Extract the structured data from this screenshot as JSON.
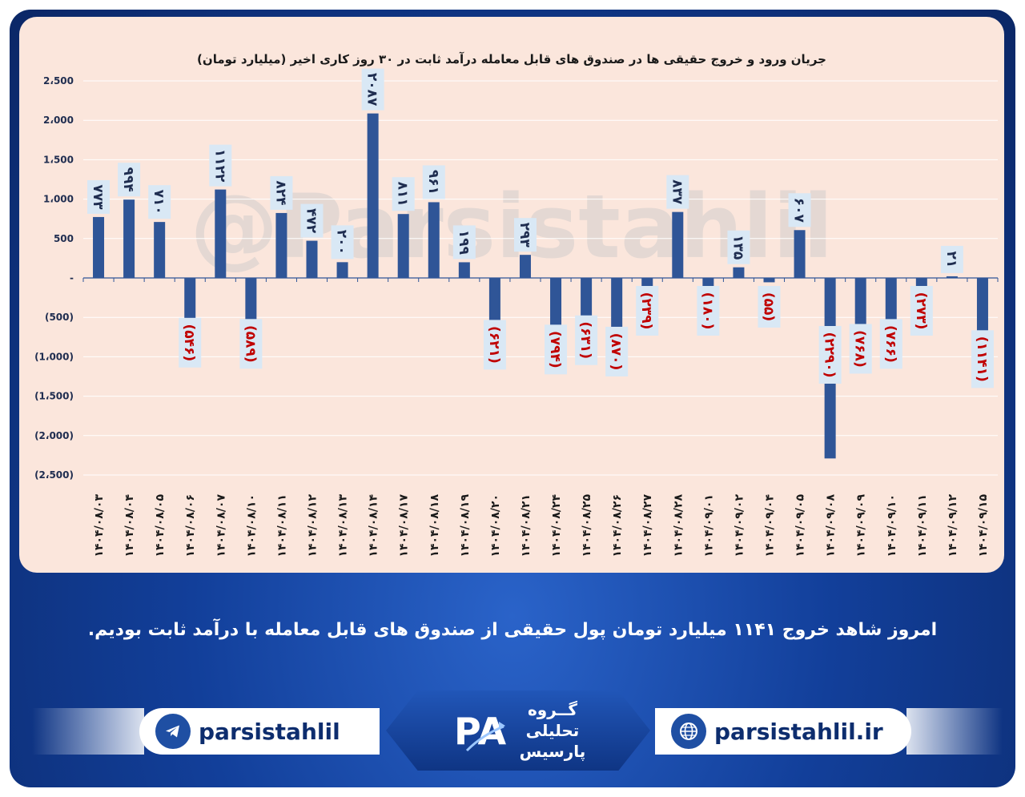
{
  "chart_data": {
    "type": "bar",
    "title": "جریان ورود و خروج حقیقی ها در صندوق های قابل معامله درآمد ثابت در ۳۰ روز کاری اخیر (میلیارد تومان)",
    "xlabel": "",
    "ylabel": "",
    "ylim": [
      -2500,
      2500
    ],
    "y_ticks": [
      {
        "value": 2500,
        "label": "2،500"
      },
      {
        "value": 2000,
        "label": "2،000"
      },
      {
        "value": 1500,
        "label": "1،500"
      },
      {
        "value": 1000,
        "label": "1،000"
      },
      {
        "value": 500,
        "label": "500"
      },
      {
        "value": 0,
        "label": "-"
      },
      {
        "value": -500,
        "label": "(500)"
      },
      {
        "value": -1000,
        "label": "(1،000)"
      },
      {
        "value": -1500,
        "label": "(1،500)"
      },
      {
        "value": -2000,
        "label": "(2،000)"
      },
      {
        "value": -2500,
        "label": "(2،500)"
      }
    ],
    "grid": true,
    "bar_color": "#2f5597",
    "positive_label_color": "#1f2d50",
    "negative_label_color": "#c00000",
    "label_bg": "#d9e8f5",
    "categories": [
      "۱۴۰۴/۰۸/۰۳",
      "۱۴۰۴/۰۸/۰۴",
      "۱۴۰۴/۰۸/۰۵",
      "۱۴۰۴/۰۸/۰۶",
      "۱۴۰۴/۰۸/۰۷",
      "۱۴۰۴/۰۸/۱۰",
      "۱۴۰۴/۰۸/۱۱",
      "۱۴۰۴/۰۸/۱۲",
      "۱۴۰۴/۰۸/۱۳",
      "۱۴۰۴/۰۸/۱۴",
      "۱۴۰۴/۰۸/۱۷",
      "۱۴۰۴/۰۸/۱۸",
      "۱۴۰۴/۰۸/۱۹",
      "۱۴۰۴/۰۸/۲۰",
      "۱۴۰۴/۰۸/۲۱",
      "۱۴۰۴/۰۸/۲۴",
      "۱۴۰۴/۰۸/۲۵",
      "۱۴۰۴/۰۸/۲۶",
      "۱۴۰۴/۰۸/۲۷",
      "۱۴۰۴/۰۸/۲۸",
      "۱۴۰۴/۰۹/۰۱",
      "۱۴۰۴/۰۹/۰۲",
      "۱۴۰۴/۰۹/۰۴",
      "۱۴۰۴/۰۹/۰۵",
      "۱۴۰۴/۰۹/۰۸",
      "۱۴۰۴/۰۹/۰۹",
      "۱۴۰۴/۰۹/۱۰",
      "۱۴۰۴/۰۹/۱۱",
      "۱۴۰۴/۰۹/۱۲",
      "۱۴۰۴/۰۹/۱۵"
    ],
    "values": [
      773,
      994,
      710,
      -546,
      1122,
      -589,
      824,
      472,
      200,
      2087,
      811,
      961,
      199,
      -621,
      293,
      -794,
      -631,
      -870,
      -239,
      837,
      -180,
      135,
      -55,
      607,
      -2290,
      -768,
      -766,
      -273,
      21,
      -1141
    ],
    "data_labels": [
      "۷۷۳",
      "۹۹۴",
      "۷۱۰",
      "(۵۴۶)",
      "۱۱۲۲",
      "(۵۸۹)",
      "۸۲۴",
      "۴۷۲",
      "۲۰۰",
      "۲۰۸۷",
      "۸۱۱",
      "۹۶۱",
      "۱۹۹",
      "(۶۲۱)",
      "۲۹۳",
      "(۷۹۴)",
      "(۶۳۱)",
      "(۸۷۰)",
      "(۲۳۹)",
      "۸۳۷",
      "(۱۸۰)",
      "۱۳۵",
      "(۵۵)",
      "۶۰۷",
      "(۲۲۹۰)",
      "(۷۶۸)",
      "(۷۶۶)",
      "(۲۷۳)",
      "۲۱",
      "(۱۱۴۱)"
    ],
    "watermark": "@Parsistahlil"
  },
  "caption": "امروز شاهد خروج ۱۱۴۱ میلیارد تومان پول حقیقی از صندوق های قابل معامله با درآمد ثابت بودیم.",
  "footer": {
    "telegram_handle": "parsistahlil",
    "website": "parsistahlil.ir",
    "logo_lines": [
      "گــروه",
      "تحلیلی",
      "پارسیس"
    ],
    "logo_letters": "PA",
    "telegram_icon": "telegram-icon",
    "web_icon": "globe-icon"
  }
}
